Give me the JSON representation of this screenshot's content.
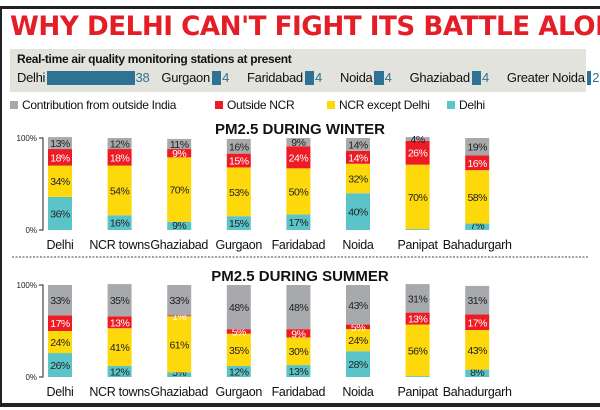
{
  "title": "WHY DELHI CAN'T FIGHT ITS BATTLE ALONE",
  "stations": {
    "title": "Real-time air quality monitoring stations at present",
    "items": [
      {
        "name": "Delhi",
        "value": 38
      },
      {
        "name": "Gurgaon",
        "value": 4
      },
      {
        "name": "Faridabad",
        "value": 4
      },
      {
        "name": "Noida",
        "value": 4
      },
      {
        "name": "Ghaziabad",
        "value": 4
      },
      {
        "name": "Greater Noida",
        "value": 2
      }
    ],
    "bar_color": "#2f7394"
  },
  "legend": [
    {
      "label": "Contribution from outside India",
      "color": "#a7a9ac"
    },
    {
      "label": "Outside NCR",
      "color": "#ed1c24"
    },
    {
      "label": "NCR except Delhi",
      "color": "#fdd80a"
    },
    {
      "label": "Delhi",
      "color": "#5bc4c8"
    }
  ],
  "chart_data": [
    {
      "type": "bar",
      "stacked": true,
      "title": "PM2.5 DURING WINTER",
      "categories": [
        "Delhi",
        "NCR towns",
        "Ghaziabad",
        "Gurgaon",
        "Faridabad",
        "Noida",
        "Panipat",
        "Bahadurgarh"
      ],
      "yticks": [
        "0%",
        "100%"
      ],
      "ylim": [
        0,
        100
      ],
      "series": [
        {
          "name": "Delhi",
          "values": [
            36,
            16,
            9,
            15,
            17,
            40,
            1,
            7
          ]
        },
        {
          "name": "NCR except Delhi",
          "values": [
            34,
            54,
            70,
            53,
            50,
            32,
            70,
            58
          ]
        },
        {
          "name": "Outside NCR",
          "values": [
            18,
            18,
            9,
            15,
            24,
            14,
            26,
            16
          ]
        },
        {
          "name": "Contribution from outside India",
          "values": [
            13,
            12,
            11,
            16,
            9,
            14,
            4,
            19
          ]
        }
      ]
    },
    {
      "type": "bar",
      "stacked": true,
      "title": "PM2.5 DURING SUMMER",
      "categories": [
        "Delhi",
        "NCR towns",
        "Ghaziabad",
        "Gurgaon",
        "Faridabad",
        "Noida",
        "Panipat",
        "Bahadurgarh"
      ],
      "yticks": [
        "0%",
        "100%"
      ],
      "ylim": [
        0,
        100
      ],
      "series": [
        {
          "name": "Delhi",
          "values": [
            26,
            12,
            5,
            12,
            13,
            28,
            1,
            8
          ]
        },
        {
          "name": "NCR except Delhi",
          "values": [
            24,
            41,
            61,
            35,
            30,
            24,
            56,
            43
          ]
        },
        {
          "name": "Outside NCR",
          "values": [
            17,
            13,
            1,
            5,
            9,
            5,
            13,
            17
          ]
        },
        {
          "name": "Contribution from outside India",
          "values": [
            33,
            35,
            33,
            48,
            48,
            43,
            31,
            31
          ]
        }
      ]
    }
  ]
}
